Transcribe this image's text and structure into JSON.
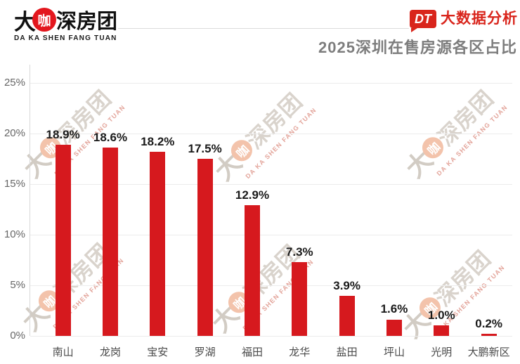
{
  "header": {
    "logo": {
      "da": "大",
      "ka": "咖",
      "rest": "深房团",
      "subtitle": "DA KA SHEN FANG TUAN"
    },
    "badge": {
      "dt": "DT",
      "label": "大数据分析"
    },
    "title": "2025深圳在售房源各区占比"
  },
  "watermark": {
    "da": "大",
    "ka": "咖",
    "rest": "深房团",
    "latin": "DA KA SHEN FANG TUAN"
  },
  "colors": {
    "bar_red": "#d6191e",
    "badge_red": "#d9251c",
    "logo_circle_red": "#e3171e",
    "title_gray": "#7d7d7d",
    "axis_label_gray": "#666666",
    "category_gray": "#4a4a4a",
    "value_label_dark": "#1a1a1a",
    "gridline_gray": "#ececec"
  },
  "chart_data": {
    "type": "bar",
    "title": "2025深圳在售房源各区占比",
    "categories": [
      "南山",
      "龙岗",
      "宝安",
      "罗湖",
      "福田",
      "龙华",
      "盐田",
      "坪山",
      "光明",
      "大鹏新区"
    ],
    "values": [
      18.9,
      18.6,
      18.2,
      17.5,
      12.9,
      7.3,
      3.9,
      1.6,
      1.0,
      0.2
    ],
    "value_labels": [
      "18.9%",
      "18.6%",
      "18.2%",
      "17.5%",
      "12.9%",
      "7.3%",
      "3.9%",
      "1.6%",
      "1.0%",
      "0.2%"
    ],
    "xlabel": "",
    "ylabel": "",
    "ylim": [
      0,
      25
    ],
    "ytick_step": 5,
    "ytick_labels": [
      "0%",
      "5%",
      "10%",
      "15%",
      "20%",
      "25%"
    ],
    "grid": true,
    "legend": false,
    "bar_color": "#d6191e"
  }
}
